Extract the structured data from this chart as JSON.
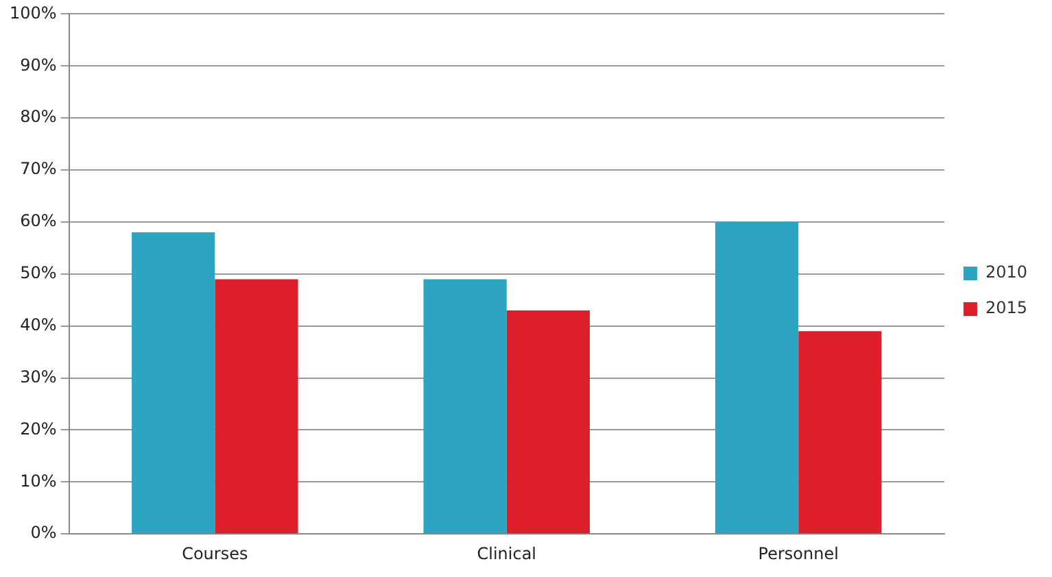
{
  "chart_data": {
    "type": "bar",
    "categories": [
      "Courses",
      "Clinical",
      "Personnel"
    ],
    "series": [
      {
        "name": "2010",
        "color": "#2ea4c3",
        "values": [
          58,
          49,
          60
        ]
      },
      {
        "name": "2015",
        "color": "#dc1f2a",
        "values": [
          49,
          43,
          39
        ]
      }
    ],
    "ylim": [
      0,
      100
    ],
    "yticks": [
      {
        "value": 0,
        "label": "0%"
      },
      {
        "value": 10,
        "label": "10%"
      },
      {
        "value": 20,
        "label": "20%"
      },
      {
        "value": 30,
        "label": "30%"
      },
      {
        "value": 40,
        "label": "40%"
      },
      {
        "value": 50,
        "label": "50%"
      },
      {
        "value": 60,
        "label": "60%"
      },
      {
        "value": 70,
        "label": "70%"
      },
      {
        "value": 80,
        "label": "80%"
      },
      {
        "value": 90,
        "label": "90%"
      },
      {
        "value": 100,
        "label": "100%"
      }
    ],
    "grid": "y",
    "legend": "right"
  }
}
